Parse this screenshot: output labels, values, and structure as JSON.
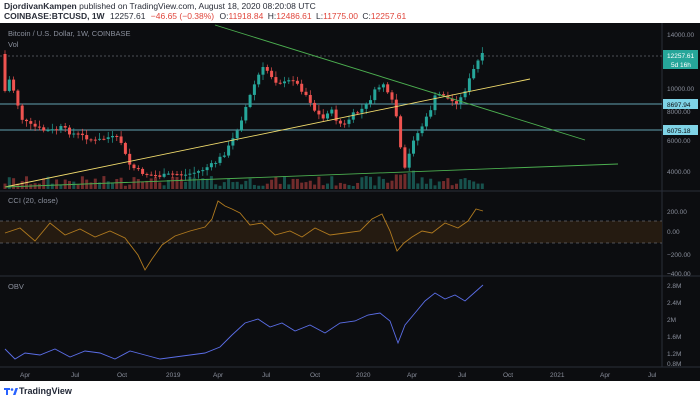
{
  "header": {
    "author": "DjordivanKampen",
    "published_text": "published on TradingView.com, August 18, 2020 08:20:08 UTC",
    "symbol": "COINBASE:BTCUSD, 1W",
    "last": "12257.61",
    "change": "−46.65 (−0.38%)",
    "o_label": "O:",
    "o_value": "11918.84",
    "h_label": "H:",
    "h_value": "12486.61",
    "l_label": "L:",
    "l_value": "11775.00",
    "c_label": "C:",
    "c_value": "12257.61"
  },
  "chart": {
    "legend_title": "Bitcoin / U.S. Dollar, 1W, COINBASE",
    "volume_label": "Vol",
    "price_ticks": [
      "14000.00",
      "10000.00",
      "8000.00",
      "6000.00",
      "4000.00"
    ],
    "last_price_tag": "12257.61",
    "countdown_tag": "5d 16h",
    "level_tag_1": "8697.94",
    "level_tag_2": "6075.18",
    "cci_label": "CCI (20, close)",
    "cci_ticks": [
      "200.00",
      "0.00",
      "−200.00",
      "−400.00"
    ],
    "obv_label": "OBV",
    "obv_ticks": [
      "2.8M",
      "2.4M",
      "2M",
      "1.6M",
      "1.2M",
      "0.8M"
    ],
    "time_ticks": [
      "Apr",
      "Jul",
      "Oct",
      "2019",
      "Apr",
      "Jul",
      "Oct",
      "2020",
      "Apr",
      "Jul",
      "Oct",
      "2021",
      "Apr",
      "Jul"
    ],
    "colors": {
      "up": "#26a69a",
      "down": "#ef5350",
      "trend_green": "#4caf50",
      "trend_yellow": "#f2dc6d",
      "level_cyan": "#7fd3e6",
      "cci_line": "#b07a1f",
      "obv_line": "#5b6ee8",
      "last_tag": "#26a69a"
    }
  },
  "footer": {
    "brand": "TradingView"
  }
}
